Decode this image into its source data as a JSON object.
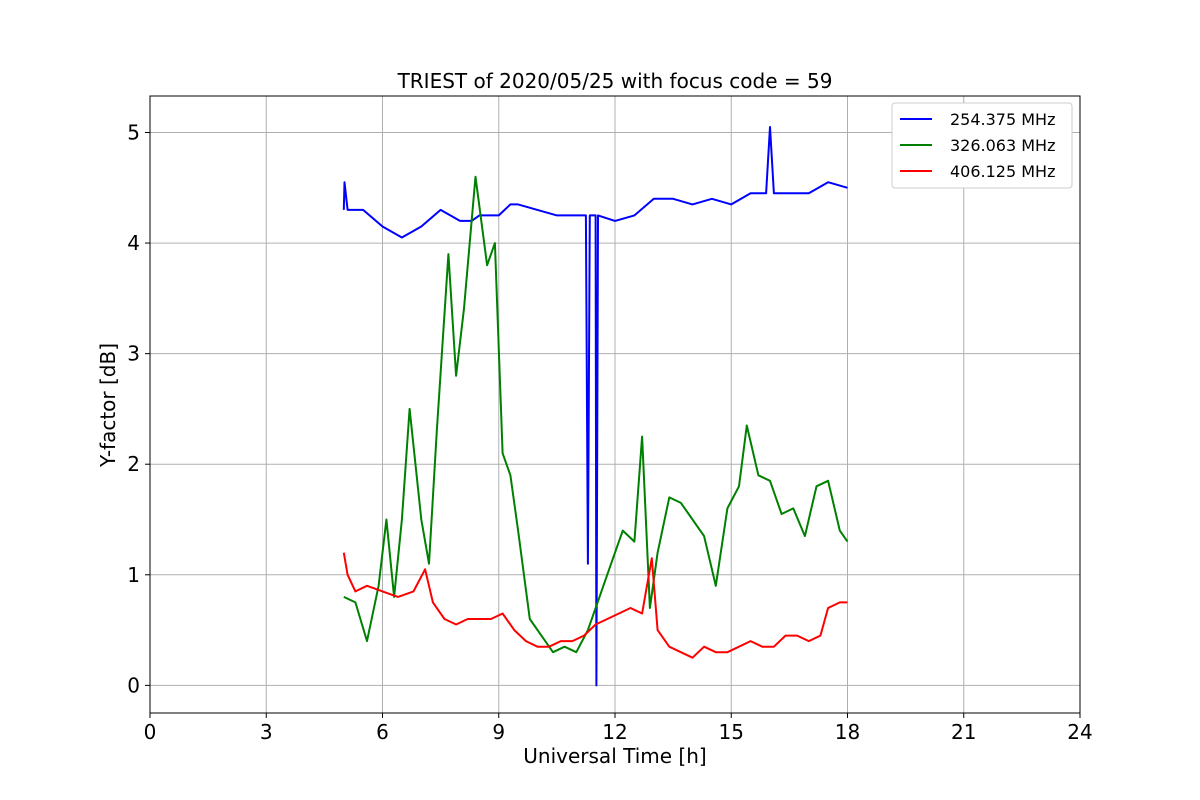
{
  "chart_data": {
    "type": "line",
    "title": "TRIEST of 2020/05/25 with focus code = 59",
    "xlabel": "Universal Time [h]",
    "ylabel": "Y-factor [dB]",
    "xlim": [
      0,
      24
    ],
    "ylim": [
      -0.25,
      5.33
    ],
    "xticks": [
      0,
      3,
      6,
      9,
      12,
      15,
      18,
      21,
      24
    ],
    "yticks": [
      0,
      1,
      2,
      3,
      4,
      5
    ],
    "grid": true,
    "legend_position": "top-right",
    "series": [
      {
        "name": "254.375 MHz",
        "color": "#0000ff",
        "x": [
          5.0,
          5.02,
          5.1,
          5.5,
          6.0,
          6.5,
          7.0,
          7.5,
          8.0,
          8.3,
          8.5,
          9.0,
          9.3,
          9.5,
          10.0,
          10.5,
          11.0,
          11.25,
          11.3,
          11.35,
          11.5,
          11.52,
          11.56,
          12.0,
          12.5,
          13.0,
          13.5,
          14.0,
          14.5,
          15.0,
          15.5,
          15.9,
          16.0,
          16.1,
          16.5,
          17.0,
          17.5,
          18.0
        ],
        "y": [
          4.3,
          4.55,
          4.3,
          4.3,
          4.15,
          4.05,
          4.15,
          4.3,
          4.2,
          4.2,
          4.25,
          4.25,
          4.35,
          4.35,
          4.3,
          4.25,
          4.25,
          4.25,
          1.1,
          4.25,
          4.25,
          0.0,
          4.25,
          4.2,
          4.25,
          4.4,
          4.4,
          4.35,
          4.4,
          4.35,
          4.45,
          4.45,
          5.05,
          4.45,
          4.45,
          4.45,
          4.55,
          4.5
        ]
      },
      {
        "name": "326.063 MHz",
        "color": "#008000",
        "x": [
          5.0,
          5.3,
          5.6,
          5.9,
          6.1,
          6.3,
          6.5,
          6.7,
          7.0,
          7.2,
          7.4,
          7.7,
          7.9,
          8.1,
          8.4,
          8.7,
          8.9,
          9.1,
          9.3,
          9.5,
          9.8,
          10.1,
          10.4,
          10.7,
          11.0,
          11.3,
          11.6,
          11.9,
          12.2,
          12.5,
          12.7,
          12.9,
          13.1,
          13.4,
          13.7,
          14.0,
          14.3,
          14.6,
          14.9,
          15.2,
          15.4,
          15.7,
          16.0,
          16.3,
          16.6,
          16.9,
          17.2,
          17.5,
          17.8,
          18.0
        ],
        "y": [
          0.8,
          0.75,
          0.4,
          0.9,
          1.5,
          0.8,
          1.5,
          2.5,
          1.5,
          1.1,
          2.3,
          3.9,
          2.8,
          3.4,
          4.6,
          3.8,
          4.0,
          2.1,
          1.9,
          1.4,
          0.6,
          0.45,
          0.3,
          0.35,
          0.3,
          0.5,
          0.8,
          1.1,
          1.4,
          1.3,
          2.25,
          0.7,
          1.2,
          1.7,
          1.65,
          1.5,
          1.35,
          0.9,
          1.6,
          1.8,
          2.35,
          1.9,
          1.85,
          1.55,
          1.6,
          1.35,
          1.8,
          1.85,
          1.4,
          1.3
        ]
      },
      {
        "name": "406.125 MHz",
        "color": "#ff0000",
        "x": [
          5.0,
          5.1,
          5.3,
          5.6,
          6.0,
          6.4,
          6.8,
          7.1,
          7.3,
          7.6,
          7.9,
          8.2,
          8.5,
          8.8,
          9.1,
          9.4,
          9.7,
          10.0,
          10.3,
          10.6,
          10.9,
          11.2,
          11.5,
          11.8,
          12.1,
          12.4,
          12.7,
          12.95,
          13.1,
          13.4,
          13.7,
          14.0,
          14.3,
          14.6,
          14.9,
          15.2,
          15.5,
          15.8,
          16.1,
          16.4,
          16.7,
          17.0,
          17.3,
          17.5,
          17.8,
          18.0
        ],
        "y": [
          1.2,
          1.0,
          0.85,
          0.9,
          0.85,
          0.8,
          0.85,
          1.05,
          0.75,
          0.6,
          0.55,
          0.6,
          0.6,
          0.6,
          0.65,
          0.5,
          0.4,
          0.35,
          0.35,
          0.4,
          0.4,
          0.45,
          0.55,
          0.6,
          0.65,
          0.7,
          0.65,
          1.15,
          0.5,
          0.35,
          0.3,
          0.25,
          0.35,
          0.3,
          0.3,
          0.35,
          0.4,
          0.35,
          0.35,
          0.45,
          0.45,
          0.4,
          0.45,
          0.7,
          0.75,
          0.75
        ]
      }
    ]
  }
}
